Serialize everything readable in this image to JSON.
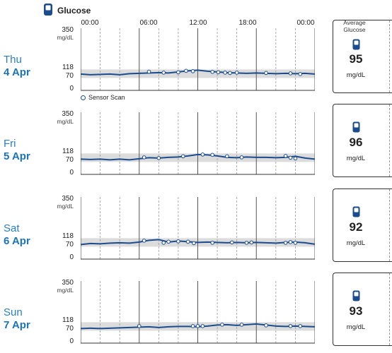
{
  "header": {
    "title": "Glucose",
    "icon": "glucose-meter-icon"
  },
  "time_labels": [
    "00:00",
    "06:00",
    "12:00",
    "18:00",
    "00:00"
  ],
  "y_axis": {
    "max": "350",
    "unit": "mg/dL",
    "target_high": "118",
    "target_low": "70",
    "zero": "0"
  },
  "legend": {
    "label": "Sensor Scan"
  },
  "average_card": {
    "title": "Average Glucose",
    "unit": "mg/dL",
    "icon": "glucose-meter-icon"
  },
  "colors": {
    "line": "#1b4d8e",
    "accent": "#2a7fc1",
    "target_band": "#dcdcdc"
  },
  "days": [
    {
      "name": "Thu",
      "date": "4 Apr",
      "average": "95"
    },
    {
      "name": "Fri",
      "date": "5 Apr",
      "average": "96"
    },
    {
      "name": "Sat",
      "date": "6 Apr",
      "average": "92"
    },
    {
      "name": "Sun",
      "date": "7 Apr",
      "average": "93"
    }
  ],
  "chart_data": [
    {
      "type": "line",
      "title": "",
      "xlabel": "",
      "ylabel": "mg/dL",
      "ylim": [
        0,
        350
      ],
      "target_range": [
        70,
        118
      ],
      "x": [
        0,
        1,
        2,
        3,
        4,
        5,
        6,
        7,
        8,
        9,
        10,
        11,
        12,
        13,
        14,
        15,
        16,
        17,
        18,
        19,
        20,
        21,
        22,
        23,
        24
      ],
      "series": [
        {
          "values": [
            92,
            88,
            90,
            92,
            88,
            94,
            96,
            98,
            100,
            98,
            104,
            110,
            114,
            108,
            104,
            100,
            98,
            96,
            98,
            96,
            94,
            96,
            94,
            96,
            92
          ]
        }
      ],
      "scans": [
        [
          7,
          105
        ],
        [
          8.5,
          100
        ],
        [
          10,
          102
        ],
        [
          10.8,
          110
        ],
        [
          11.5,
          108
        ],
        [
          13.5,
          104
        ],
        [
          14.1,
          102
        ],
        [
          14.8,
          100
        ],
        [
          15.3,
          98
        ],
        [
          16,
          100
        ],
        [
          19,
          98
        ],
        [
          21.5,
          96
        ],
        [
          22.5,
          92
        ]
      ]
    },
    {
      "type": "line",
      "title": "",
      "xlabel": "",
      "ylabel": "mg/dL",
      "ylim": [
        0,
        350
      ],
      "target_range": [
        70,
        118
      ],
      "x": [
        0,
        1,
        2,
        3,
        4,
        5,
        6,
        7,
        8,
        9,
        10,
        11,
        12,
        13,
        14,
        15,
        16,
        17,
        18,
        19,
        20,
        21,
        22,
        23,
        24
      ],
      "series": [
        {
          "values": [
            86,
            84,
            86,
            82,
            86,
            82,
            88,
            94,
            92,
            96,
            98,
            104,
            112,
            110,
            104,
            96,
            94,
            98,
            96,
            96,
            94,
            96,
            102,
            92,
            86
          ]
        }
      ],
      "scans": [
        [
          6.5,
          96
        ],
        [
          8,
          92
        ],
        [
          10.5,
          102
        ],
        [
          12.5,
          112
        ],
        [
          13.5,
          110
        ],
        [
          15,
          102
        ],
        [
          16.5,
          96
        ],
        [
          21,
          104
        ],
        [
          21.5,
          94
        ],
        [
          22,
          90
        ]
      ]
    },
    {
      "type": "line",
      "title": "",
      "xlabel": "",
      "ylabel": "mg/dL",
      "ylim": [
        0,
        350
      ],
      "target_range": [
        70,
        118
      ],
      "x": [
        0,
        1,
        2,
        3,
        4,
        5,
        6,
        7,
        8,
        9,
        10,
        11,
        12,
        13,
        14,
        15,
        16,
        17,
        18,
        19,
        20,
        21,
        22,
        23,
        24
      ],
      "series": [
        {
          "values": [
            82,
            88,
            86,
            90,
            92,
            90,
            96,
            106,
            110,
            96,
            102,
            98,
            94,
            96,
            94,
            92,
            94,
            92,
            94,
            92,
            90,
            94,
            96,
            92,
            84
          ]
        }
      ],
      "scans": [
        [
          6.5,
          104
        ],
        [
          8.5,
          92
        ],
        [
          9,
          98
        ],
        [
          10,
          100
        ],
        [
          11,
          98
        ],
        [
          11.6,
          90
        ],
        [
          13.5,
          92
        ],
        [
          15.5,
          94
        ],
        [
          17,
          92
        ],
        [
          17.5,
          94
        ],
        [
          21,
          92
        ],
        [
          21.5,
          96
        ],
        [
          22,
          92
        ]
      ]
    },
    {
      "type": "line",
      "title": "",
      "xlabel": "",
      "ylabel": "mg/dL",
      "ylim": [
        0,
        350
      ],
      "target_range": [
        70,
        118
      ],
      "x": [
        0,
        1,
        2,
        3,
        4,
        5,
        6,
        7,
        8,
        9,
        10,
        11,
        12,
        13,
        14,
        15,
        16,
        17,
        18,
        19,
        20,
        21,
        22,
        23,
        24
      ],
      "series": [
        {
          "values": [
            82,
            84,
            82,
            84,
            86,
            88,
            90,
            92,
            88,
            92,
            94,
            94,
            92,
            96,
            102,
            104,
            100,
            104,
            108,
            102,
            96,
            94,
            96,
            94,
            92
          ]
        }
      ],
      "scans": [
        [
          6,
          96
        ],
        [
          11.5,
          96
        ],
        [
          12,
          96
        ],
        [
          12.5,
          96
        ],
        [
          14.5,
          104
        ],
        [
          16.5,
          104
        ],
        [
          19,
          100
        ],
        [
          21.5,
          96
        ],
        [
          22.5,
          96
        ]
      ]
    }
  ]
}
